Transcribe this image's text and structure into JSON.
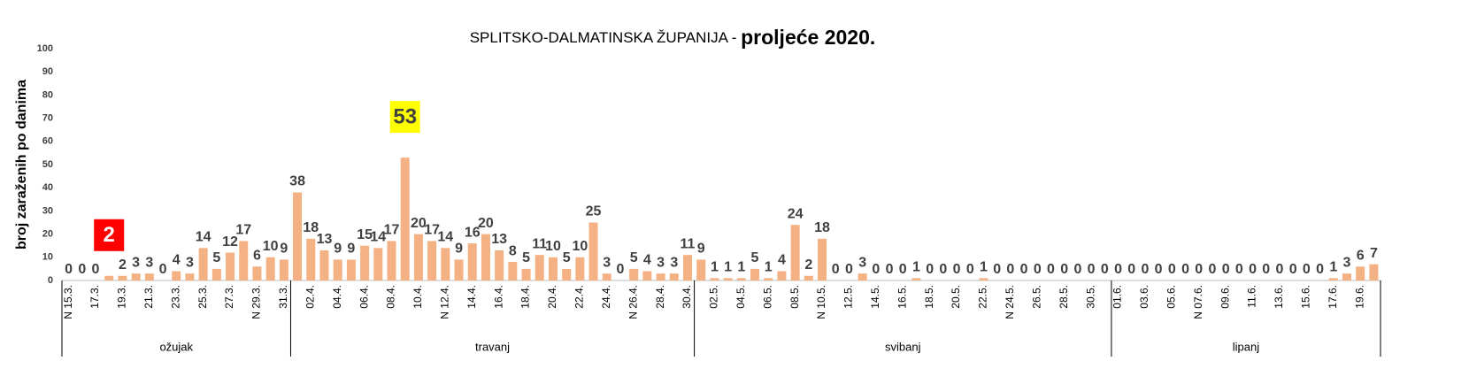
{
  "chart_data": {
    "type": "bar",
    "title": "SPLITSKO-DALMATINSKA ŽUPANIJA - ",
    "subtitle": "proljeće 2020.",
    "y_label": "broj zaraženih po danima",
    "color": "#f4b183",
    "ylim": [
      0,
      100
    ],
    "yticks": [
      0,
      10,
      20,
      30,
      40,
      50,
      60,
      70,
      80,
      90,
      100
    ],
    "grid": false,
    "categories": [
      "N 15.3.",
      null,
      "17.3.",
      null,
      "19.3.",
      null,
      "21.3.",
      null,
      "23.3.",
      null,
      "25.3.",
      null,
      "27.3.",
      null,
      "N 29.3.",
      null,
      "31.3.",
      null,
      "02.4.",
      null,
      "04.4.",
      null,
      "06.4.",
      null,
      "08.4.",
      null,
      "10.4.",
      null,
      "N 12.4.",
      null,
      "14.4.",
      null,
      "16.4.",
      null,
      "18.4.",
      null,
      "20.4.",
      null,
      "22.4.",
      null,
      "24.4.",
      null,
      "N 26.4.",
      null,
      "28.4.",
      null,
      "30.4.",
      null,
      "02.5.",
      null,
      "04.5.",
      null,
      "06.5.",
      null,
      "08.5.",
      null,
      "N 10.5.",
      null,
      "12.5.",
      null,
      "14.5.",
      null,
      "16.5.",
      null,
      "18.5.",
      null,
      "20.5.",
      null,
      "22.5.",
      null,
      "N 24.5.",
      null,
      "26.5.",
      null,
      "28.5.",
      null,
      "30.5.",
      null,
      "01.6.",
      null,
      "03.6.",
      null,
      "05.6.",
      null,
      "N 07.6.",
      null,
      "09.6.",
      null,
      "11.6.",
      null,
      "13.6.",
      null,
      "15.6.",
      null,
      "17.6.",
      null,
      "19.6.",
      null
    ],
    "values": [
      0,
      0,
      0,
      2,
      2,
      3,
      3,
      0,
      4,
      3,
      14,
      5,
      12,
      17,
      6,
      10,
      9,
      38,
      18,
      13,
      9,
      9,
      15,
      14,
      17,
      53,
      20,
      17,
      14,
      9,
      16,
      20,
      13,
      8,
      5,
      11,
      10,
      5,
      10,
      25,
      3,
      0,
      5,
      4,
      3,
      3,
      11,
      9,
      1,
      1,
      1,
      5,
      1,
      4,
      24,
      2,
      18,
      0,
      0,
      3,
      0,
      0,
      0,
      1,
      0,
      0,
      0,
      0,
      1,
      0,
      0,
      0,
      0,
      0,
      0,
      0,
      0,
      0,
      0,
      0,
      0,
      0,
      0,
      0,
      0,
      0,
      0,
      0,
      0,
      0,
      0,
      0,
      0,
      0,
      1,
      3,
      6,
      7
    ],
    "groups": [
      {
        "label": "ožujak",
        "span": 17
      },
      {
        "label": "travanj",
        "span": 30
      },
      {
        "label": "svibanj",
        "span": 31
      },
      {
        "label": "lipanj",
        "span": 20
      }
    ],
    "highlights": [
      {
        "index": 3,
        "color": "#ff0000",
        "text_color": "#ffffff"
      },
      {
        "index": 25,
        "color": "#ffff00",
        "text_color": "#404040"
      }
    ]
  }
}
